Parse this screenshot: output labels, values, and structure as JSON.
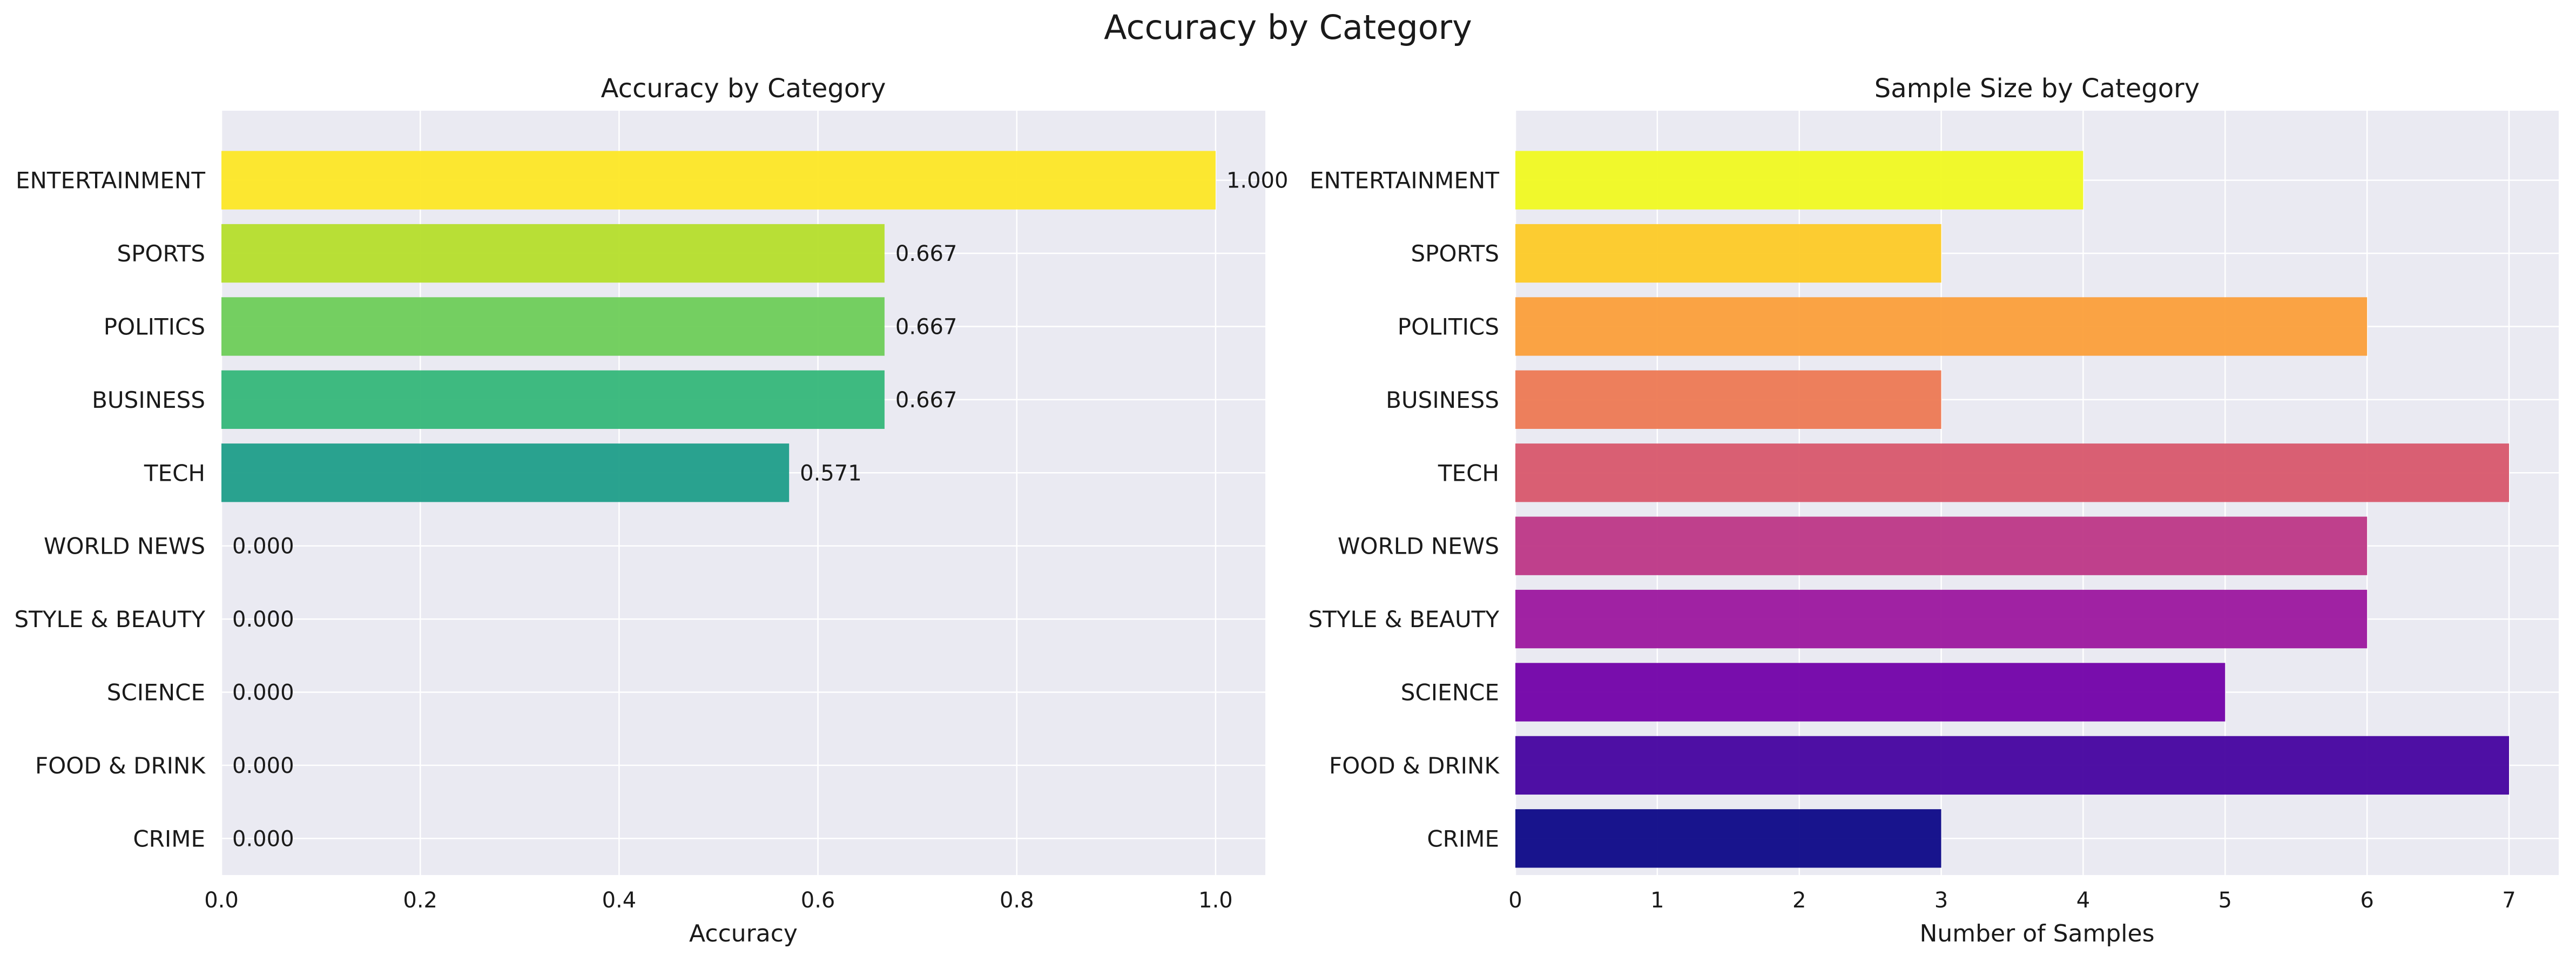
{
  "figure": {
    "suptitle": "Accuracy by Category"
  },
  "chart_data": [
    {
      "type": "bar",
      "orientation": "horizontal",
      "title": "Accuracy by Category",
      "xlabel": "Accuracy",
      "ylabel": "",
      "categories": [
        "ENTERTAINMENT",
        "SPORTS",
        "POLITICS",
        "BUSINESS",
        "TECH",
        "WORLD NEWS",
        "STYLE & BEAUTY",
        "SCIENCE",
        "FOOD & DRINK",
        "CRIME"
      ],
      "values": [
        1.0,
        0.667,
        0.667,
        0.667,
        0.571,
        0.0,
        0.0,
        0.0,
        0.0,
        0.0
      ],
      "data_labels": [
        "1.000",
        "0.667",
        "0.667",
        "0.667",
        "0.571",
        "0.000",
        "0.000",
        "0.000",
        "0.000",
        "0.000"
      ],
      "colors": [
        "#fde725",
        "#b5de2b",
        "#6ece58",
        "#35b779",
        "#1f9e89",
        "#26828e",
        "#31688e",
        "#3e4989",
        "#482878",
        "#440154"
      ],
      "xlim": [
        0,
        1.05
      ],
      "xticks": [
        0.0,
        0.2,
        0.4,
        0.6,
        0.8,
        1.0
      ],
      "xtick_labels": [
        "0.0",
        "0.2",
        "0.4",
        "0.6",
        "0.8",
        "1.0"
      ],
      "grid": true,
      "legend": "none"
    },
    {
      "type": "bar",
      "orientation": "horizontal",
      "title": "Sample Size by Category",
      "xlabel": "Number of Samples",
      "ylabel": "",
      "categories": [
        "ENTERTAINMENT",
        "SPORTS",
        "POLITICS",
        "BUSINESS",
        "TECH",
        "WORLD NEWS",
        "STYLE & BEAUTY",
        "SCIENCE",
        "FOOD & DRINK",
        "CRIME"
      ],
      "values": [
        4,
        3,
        6,
        3,
        7,
        6,
        6,
        5,
        7,
        3
      ],
      "colors": [
        "#f0f921",
        "#fdca26",
        "#fb9f3a",
        "#ed7953",
        "#d8576b",
        "#bd3786",
        "#9c179e",
        "#7201a8",
        "#46039f",
        "#0d0887"
      ],
      "xlim": [
        0,
        7.35
      ],
      "xticks": [
        0,
        1,
        2,
        3,
        4,
        5,
        6,
        7
      ],
      "xtick_labels": [
        "0",
        "1",
        "2",
        "3",
        "4",
        "5",
        "6",
        "7"
      ],
      "grid": true,
      "legend": "none"
    }
  ]
}
